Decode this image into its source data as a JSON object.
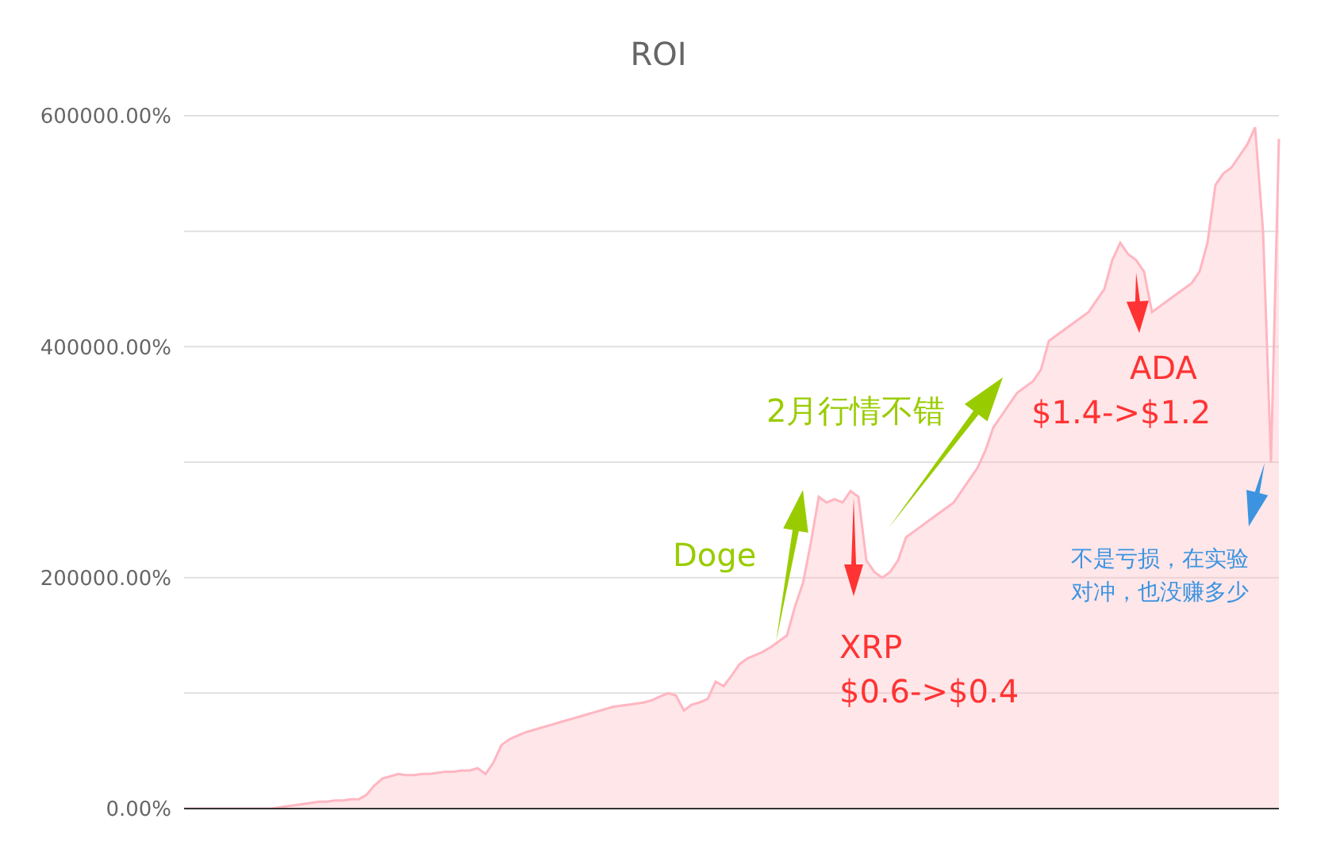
{
  "chart_data": {
    "type": "area",
    "title": "ROI",
    "color": "#ffb6c1",
    "categories": [
      null,
      null,
      null,
      null,
      null,
      null,
      null,
      null,
      null,
      null,
      null,
      null,
      null,
      null,
      null,
      null,
      null,
      null,
      null,
      null,
      null,
      null,
      null,
      null,
      null,
      null,
      null,
      null,
      null,
      null,
      null,
      null,
      null,
      null,
      null,
      null,
      null,
      null,
      null,
      null,
      null,
      null,
      null,
      null,
      null,
      null,
      null,
      null,
      null,
      null,
      null,
      null,
      null,
      null,
      null,
      null,
      null,
      null,
      null,
      null,
      null,
      null,
      null,
      null,
      null,
      null,
      null,
      null,
      null,
      null,
      null,
      null,
      null,
      null,
      null,
      null,
      null,
      null,
      null,
      null,
      null,
      null,
      null,
      null,
      null,
      null,
      null,
      null,
      null,
      null,
      null,
      null,
      null,
      null,
      null,
      null,
      null,
      null,
      null,
      null,
      null,
      null,
      null,
      null,
      null,
      null,
      null,
      null,
      null,
      null,
      null,
      null,
      null,
      null,
      null,
      null,
      null,
      null,
      null,
      null,
      null,
      null,
      null,
      null,
      null,
      null,
      null,
      null,
      null,
      null,
      null,
      null,
      null,
      null,
      null,
      null,
      null,
      null,
      null
    ],
    "values": [
      0,
      0,
      0,
      0,
      0,
      0,
      0,
      0,
      0,
      0,
      0,
      0,
      1000,
      2000,
      3000,
      4000,
      5000,
      6000,
      6000,
      7000,
      7000,
      8000,
      8000,
      12000,
      20000,
      26000,
      28000,
      30000,
      29000,
      29000,
      30000,
      30000,
      31000,
      32000,
      32000,
      33000,
      33000,
      35000,
      30000,
      40000,
      55000,
      60000,
      63000,
      66000,
      68000,
      70000,
      72000,
      74000,
      76000,
      78000,
      80000,
      82000,
      84000,
      86000,
      88000,
      89000,
      90000,
      91000,
      92000,
      94000,
      97000,
      100000,
      98000,
      85000,
      90000,
      92000,
      95000,
      110000,
      106000,
      115000,
      125000,
      130000,
      133000,
      136000,
      140000,
      145000,
      150000,
      175000,
      195000,
      230000,
      270000,
      265000,
      268000,
      265000,
      275000,
      270000,
      215000,
      205000,
      200000,
      205000,
      215000,
      235000,
      240000,
      245000,
      250000,
      255000,
      260000,
      265000,
      275000,
      285000,
      295000,
      310000,
      330000,
      340000,
      350000,
      360000,
      365000,
      370000,
      380000,
      405000,
      410000,
      415000,
      420000,
      425000,
      430000,
      440000,
      450000,
      475000,
      490000,
      480000,
      475000,
      465000,
      430000,
      435000,
      440000,
      445000,
      450000,
      455000,
      465000,
      490000,
      540000,
      550000,
      555000,
      565000,
      575000,
      590000,
      500000,
      300000,
      580000
    ],
    "ylim": [
      0,
      600000
    ],
    "yticks": [
      {
        "value": 0,
        "label": "0.00%"
      },
      {
        "value": 100000,
        "label": null
      },
      {
        "value": 200000,
        "label": "200000.00%"
      },
      {
        "value": 300000,
        "label": null
      },
      {
        "value": 400000,
        "label": "400000.00%"
      },
      {
        "value": 500000,
        "label": null
      },
      {
        "value": 600000,
        "label": "600000.00%"
      }
    ],
    "grid": "y",
    "tick_labels": "y",
    "annotations": [
      "Doge",
      "2月行情不错",
      "XRP",
      "$0.6->$0.4",
      "ADA",
      "$1.4->$1.2",
      "不是亏损，在实验对冲，也没赚多少"
    ]
  }
}
